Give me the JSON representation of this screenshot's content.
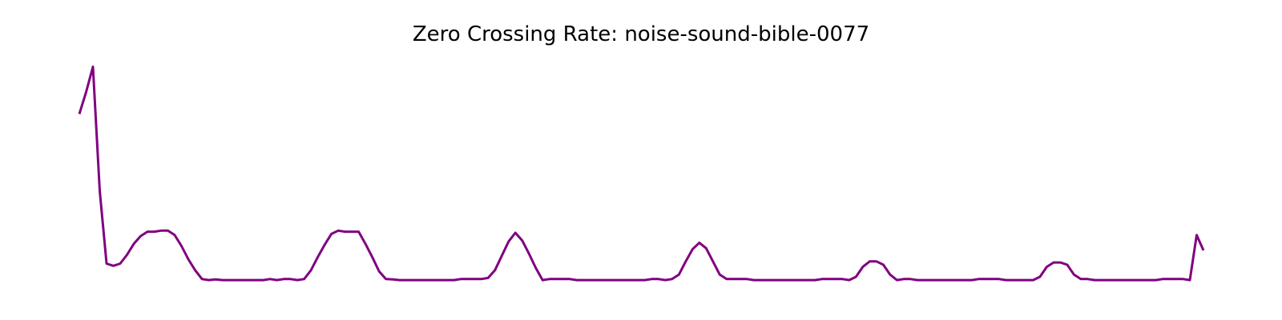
{
  "chart_data": {
    "type": "line",
    "title": "Zero Crossing Rate: noise-sound-bible-0077",
    "xlabel": "",
    "ylabel": "",
    "axes_visible": false,
    "grid": false,
    "colors": {
      "line": "#800080"
    },
    "ylim": [
      0,
      1
    ],
    "series": [
      {
        "values": [
          0.78,
          0.88,
          0.995,
          0.43,
          0.1,
          0.09,
          0.1,
          0.14,
          0.19,
          0.225,
          0.245,
          0.245,
          0.25,
          0.25,
          0.23,
          0.18,
          0.12,
          0.07,
          0.03,
          0.025,
          0.028,
          0.025,
          0.025,
          0.025,
          0.025,
          0.025,
          0.025,
          0.025,
          0.03,
          0.025,
          0.03,
          0.03,
          0.025,
          0.03,
          0.07,
          0.13,
          0.185,
          0.235,
          0.25,
          0.245,
          0.245,
          0.245,
          0.19,
          0.13,
          0.065,
          0.03,
          0.028,
          0.025,
          0.025,
          0.025,
          0.025,
          0.025,
          0.025,
          0.025,
          0.025,
          0.025,
          0.03,
          0.03,
          0.03,
          0.03,
          0.035,
          0.07,
          0.135,
          0.2,
          0.24,
          0.205,
          0.145,
          0.08,
          0.025,
          0.03,
          0.03,
          0.03,
          0.03,
          0.025,
          0.025,
          0.025,
          0.025,
          0.025,
          0.025,
          0.025,
          0.025,
          0.025,
          0.025,
          0.025,
          0.03,
          0.03,
          0.025,
          0.03,
          0.05,
          0.11,
          0.165,
          0.195,
          0.17,
          0.11,
          0.05,
          0.03,
          0.03,
          0.03,
          0.03,
          0.025,
          0.025,
          0.025,
          0.025,
          0.025,
          0.025,
          0.025,
          0.025,
          0.025,
          0.025,
          0.03,
          0.03,
          0.03,
          0.03,
          0.025,
          0.04,
          0.085,
          0.11,
          0.11,
          0.095,
          0.05,
          0.025,
          0.03,
          0.03,
          0.025,
          0.025,
          0.025,
          0.025,
          0.025,
          0.025,
          0.025,
          0.025,
          0.025,
          0.03,
          0.03,
          0.03,
          0.03,
          0.025,
          0.025,
          0.025,
          0.025,
          0.025,
          0.04,
          0.085,
          0.105,
          0.105,
          0.095,
          0.05,
          0.03,
          0.03,
          0.025,
          0.025,
          0.025,
          0.025,
          0.025,
          0.025,
          0.025,
          0.025,
          0.025,
          0.025,
          0.03,
          0.03,
          0.03,
          0.03,
          0.025,
          0.23,
          0.16
        ]
      }
    ]
  }
}
